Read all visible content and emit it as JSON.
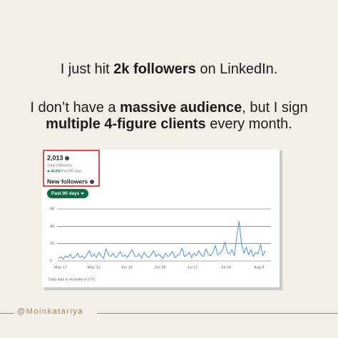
{
  "headline": {
    "line1": [
      "I just hit ",
      "2k followers",
      " on LinkedIn."
    ],
    "line2": [
      "I don’t have a ",
      "massive audience",
      ", but I sign"
    ],
    "line3": [
      "multiple 4-figure clients",
      " every month."
    ]
  },
  "card": {
    "total": "2,013",
    "total_label": "Total followers",
    "change": "44.6%",
    "change_period": "Past 90 days",
    "section_title": "New followers",
    "range_button": "Past 90 days",
    "footnote": "Daily data is recorded in UTC"
  },
  "footer": {
    "handle": "@Moinkatariya"
  },
  "chart_data": {
    "type": "line",
    "color": "#5b9bd5",
    "categories": [
      "May 17",
      null,
      null,
      null,
      null,
      null,
      null,
      null,
      null,
      null,
      null,
      null,
      null,
      null,
      "May 31",
      null,
      null,
      null,
      null,
      null,
      null,
      null,
      null,
      null,
      null,
      null,
      null,
      null,
      "Jun 14",
      null,
      null,
      null,
      null,
      null,
      null,
      null,
      null,
      null,
      null,
      null,
      null,
      null,
      "Jun 28",
      null,
      null,
      null,
      null,
      null,
      null,
      null,
      null,
      null,
      null,
      null,
      null,
      null,
      "Jul 12",
      null,
      null,
      null,
      null,
      null,
      null,
      null,
      null,
      null,
      null,
      null,
      null,
      null,
      "Jul 26",
      null,
      null,
      null,
      null,
      null,
      null,
      null,
      null,
      null,
      null,
      null,
      null,
      null,
      "Aug 9",
      null,
      null,
      null
    ],
    "values": [
      3,
      5,
      2,
      6,
      4,
      8,
      3,
      5,
      9,
      4,
      6,
      3,
      7,
      12,
      5,
      8,
      4,
      10,
      6,
      3,
      14,
      7,
      5,
      9,
      4,
      6,
      11,
      5,
      7,
      4,
      9,
      13,
      6,
      5,
      8,
      3,
      10,
      6,
      4,
      7,
      12,
      5,
      8,
      6,
      3,
      9,
      5,
      7,
      11,
      4,
      6,
      8,
      15,
      5,
      7,
      10,
      4,
      9,
      6,
      12,
      7,
      5,
      14,
      8,
      6,
      10,
      18,
      7,
      9,
      12,
      22,
      10,
      8,
      13,
      6,
      28,
      46,
      20,
      9,
      16,
      7,
      13,
      5,
      10,
      8,
      19,
      6,
      12
    ],
    "ylim": [
      0,
      60
    ],
    "yticks": [
      0,
      20,
      40,
      60
    ],
    "grid": true
  }
}
